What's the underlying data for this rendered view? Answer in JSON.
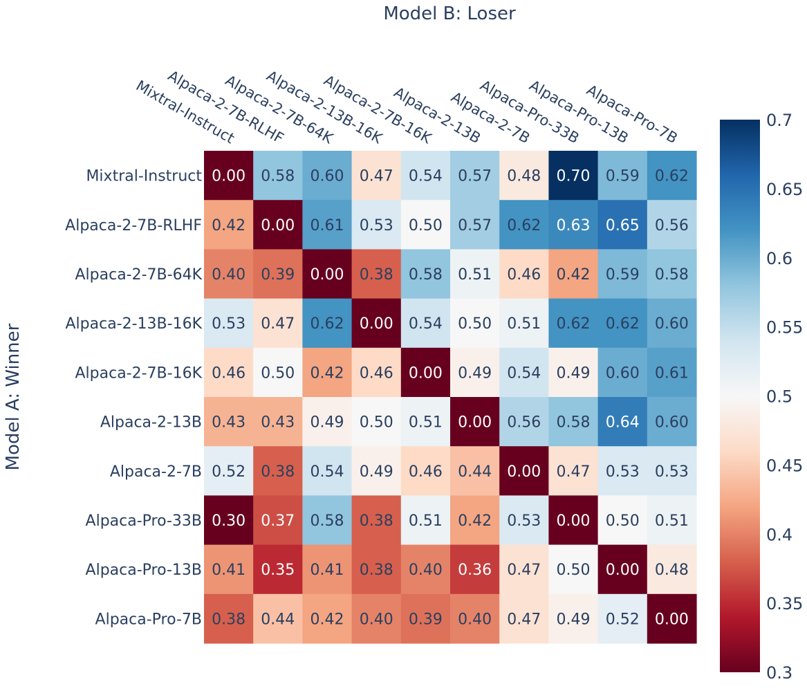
{
  "chart_data": {
    "type": "heatmap",
    "title": "Model B: Loser",
    "xlabel": "Model B: Loser",
    "ylabel": "Model A: Winner",
    "x": [
      "Mixtral-Instruct",
      "Alpaca-2-7B-RLHF",
      "Alpaca-2-7B-64K",
      "Alpaca-2-13B-16K",
      "Alpaca-2-7B-16K",
      "Alpaca-2-13B",
      "Alpaca-2-7B",
      "Alpaca-Pro-33B",
      "Alpaca-Pro-13B",
      "Alpaca-Pro-7B"
    ],
    "y": [
      "Mixtral-Instruct",
      "Alpaca-2-7B-RLHF",
      "Alpaca-2-7B-64K",
      "Alpaca-2-13B-16K",
      "Alpaca-2-7B-16K",
      "Alpaca-2-13B",
      "Alpaca-2-7B",
      "Alpaca-Pro-33B",
      "Alpaca-Pro-13B",
      "Alpaca-Pro-7B"
    ],
    "z": [
      [
        0.0,
        0.58,
        0.6,
        0.47,
        0.54,
        0.57,
        0.48,
        0.7,
        0.59,
        0.62
      ],
      [
        0.42,
        0.0,
        0.61,
        0.53,
        0.5,
        0.57,
        0.62,
        0.63,
        0.65,
        0.56
      ],
      [
        0.4,
        0.39,
        0.0,
        0.38,
        0.58,
        0.51,
        0.46,
        0.42,
        0.59,
        0.58
      ],
      [
        0.53,
        0.47,
        0.62,
        0.0,
        0.54,
        0.5,
        0.51,
        0.62,
        0.62,
        0.6
      ],
      [
        0.46,
        0.5,
        0.42,
        0.46,
        0.0,
        0.49,
        0.54,
        0.49,
        0.6,
        0.61
      ],
      [
        0.43,
        0.43,
        0.49,
        0.5,
        0.51,
        0.0,
        0.56,
        0.58,
        0.64,
        0.6
      ],
      [
        0.52,
        0.38,
        0.54,
        0.49,
        0.46,
        0.44,
        0.0,
        0.47,
        0.53,
        0.53
      ],
      [
        0.3,
        0.37,
        0.58,
        0.38,
        0.51,
        0.42,
        0.53,
        0.0,
        0.5,
        0.51
      ],
      [
        0.41,
        0.35,
        0.41,
        0.38,
        0.4,
        0.36,
        0.47,
        0.5,
        0.0,
        0.48
      ],
      [
        0.38,
        0.44,
        0.42,
        0.4,
        0.39,
        0.4,
        0.47,
        0.49,
        0.52,
        0.0
      ]
    ],
    "zlim": [
      0.3,
      0.7
    ],
    "colorscale": "RdBu",
    "colorbar_ticks": [
      "0.3",
      "0.35",
      "0.4",
      "0.45",
      "0.5",
      "0.55",
      "0.6",
      "0.65",
      "0.7"
    ],
    "colorbar_tick_values": [
      0.3,
      0.35,
      0.4,
      0.45,
      0.5,
      0.55,
      0.6,
      0.65,
      0.7
    ],
    "x_axis_side": "top",
    "colorbar_position": "right"
  },
  "colors": {
    "text": "#2a3f5f",
    "scale": [
      "#67001f",
      "#b2182b",
      "#d6604d",
      "#f4a582",
      "#fddbc7",
      "#f7f7f7",
      "#d1e5f0",
      "#92c5de",
      "#4393c3",
      "#2166ac",
      "#053061"
    ]
  }
}
